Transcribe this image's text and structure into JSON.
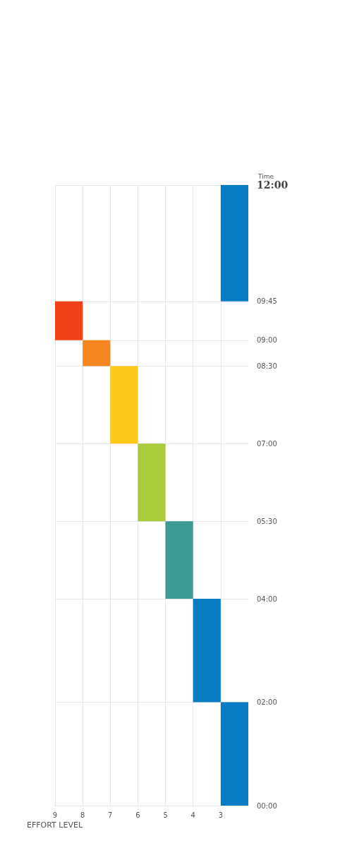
{
  "chart_data": {
    "type": "histogram",
    "orientation": "horizontal",
    "xlabel": "EFFORT LEVEL",
    "ylabel": "Time",
    "bins": [
      0,
      2,
      4,
      5.5,
      7,
      8.5,
      9,
      9.75,
      12
    ],
    "values": [
      1,
      1,
      1,
      1,
      1,
      1,
      1,
      1
    ],
    "base": [
      2,
      3,
      4,
      5,
      6,
      7,
      8,
      2
    ],
    "colors": [
      "#0a7cc4",
      "#0a7cc4",
      "#3f9c95",
      "#a9cd3a",
      "#fcc91a",
      "#f6861f",
      "#f2401a",
      "#0a7cc4"
    ],
    "xlim": [
      9,
      2
    ],
    "xticks": [
      9,
      8,
      7,
      6,
      5,
      4,
      3
    ],
    "ylim": [
      0,
      12
    ],
    "yticks": [
      {
        "value": 0,
        "label": "00:00"
      },
      {
        "value": 2,
        "label": "02:00"
      },
      {
        "value": 4,
        "label": "04:00"
      },
      {
        "value": 5.5,
        "label": "05:30"
      },
      {
        "value": 7,
        "label": "07:00"
      },
      {
        "value": 8.5,
        "label": "08:30"
      },
      {
        "value": 9,
        "label": "09:00"
      },
      {
        "value": 9.75,
        "label": "09:45"
      },
      {
        "value": 12,
        "label": "12:00"
      }
    ],
    "grid": true
  }
}
